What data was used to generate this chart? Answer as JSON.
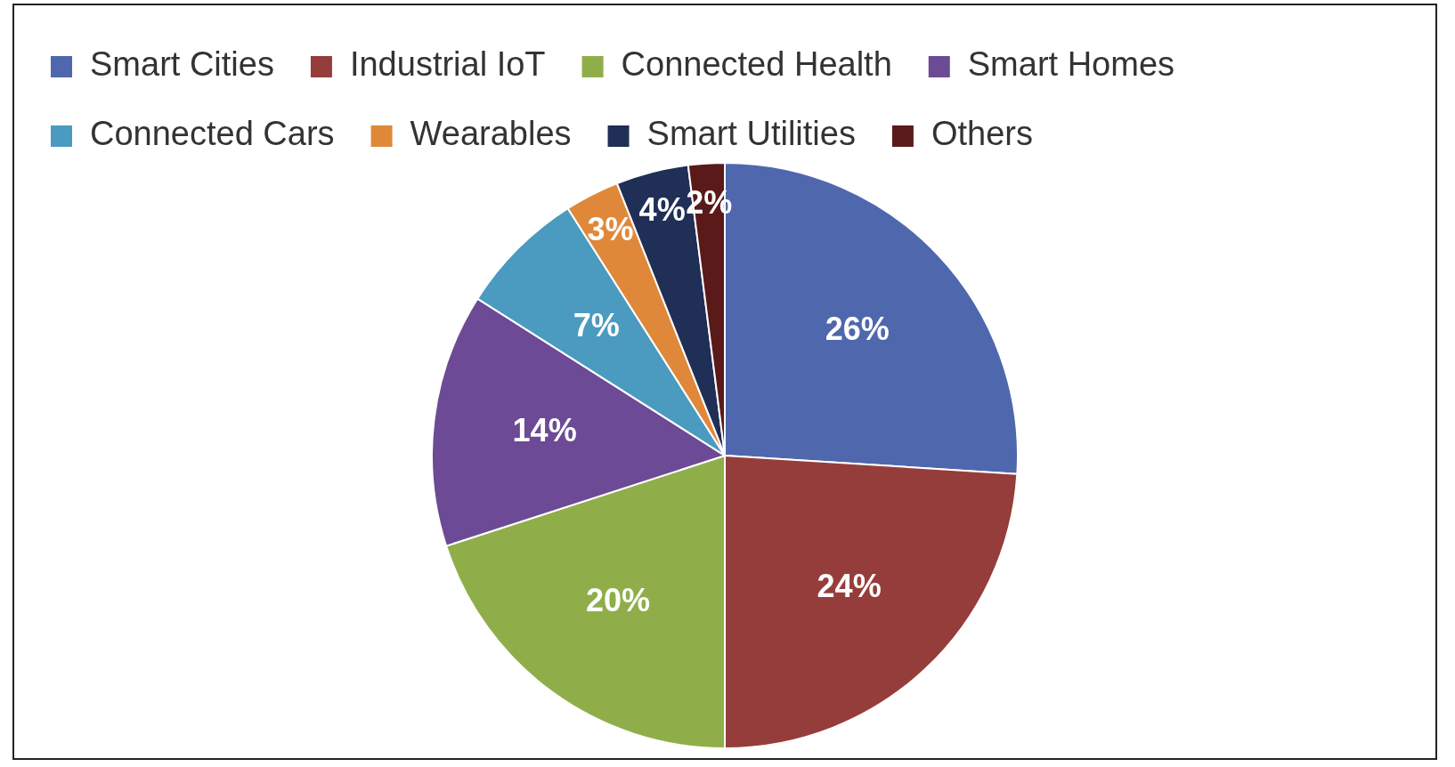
{
  "chart_data": {
    "type": "pie",
    "categories": [
      "Smart Cities",
      "Industrial IoT",
      "Connected Health",
      "Smart Homes",
      "Connected Cars",
      "Wearables",
      "Smart Utilities",
      "Others"
    ],
    "values": [
      26,
      24,
      20,
      14,
      7,
      3,
      4,
      2
    ],
    "colors": [
      "#4f67ad",
      "#953d3b",
      "#8fae4a",
      "#6c4a95",
      "#4b9ac0",
      "#e0883a",
      "#1f2f55",
      "#5a1a1a"
    ],
    "value_labels": [
      "26%",
      "24%",
      "20%",
      "14%",
      "7%",
      "3%",
      "4%",
      "2%"
    ],
    "legend": "top"
  }
}
